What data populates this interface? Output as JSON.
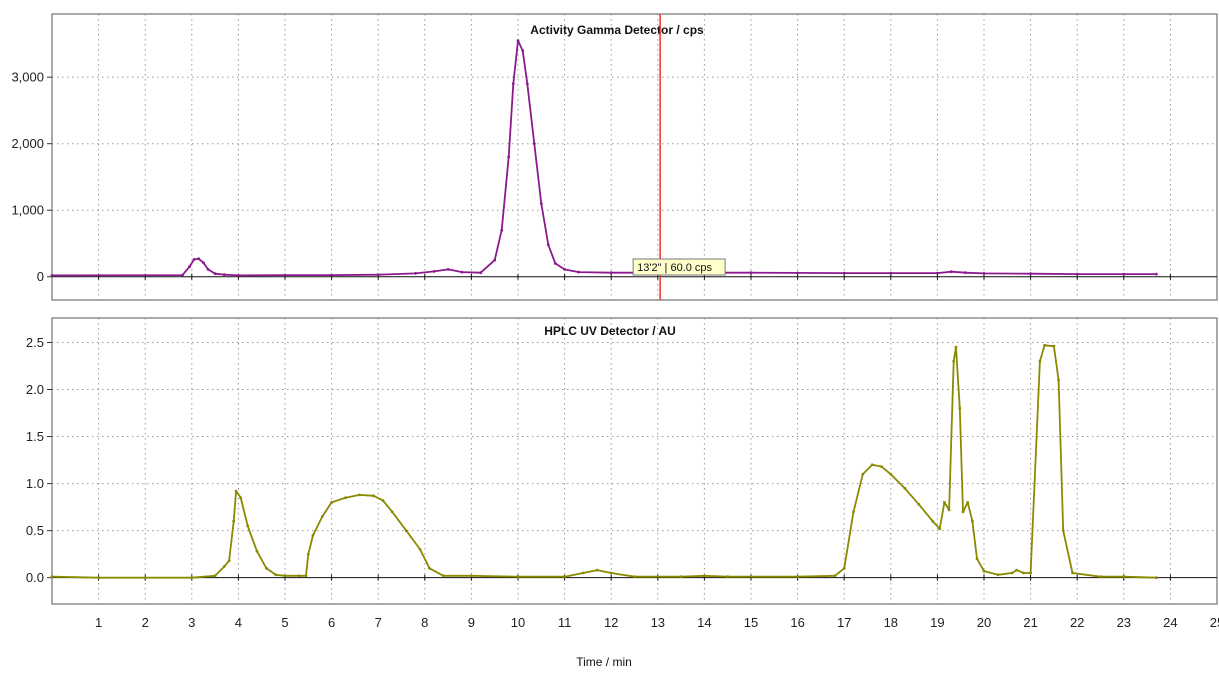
{
  "chart_data": [
    {
      "type": "line",
      "title": "Activity Gamma Detector / cps",
      "xlabel": "",
      "ylabel": "",
      "xlim": [
        0,
        25
      ],
      "ylim": [
        -350,
        3950
      ],
      "yticks": [
        0,
        1000,
        2000,
        3000
      ],
      "ytick_labels": [
        "0",
        "1,000",
        "2,000",
        "3,000"
      ],
      "grid": true,
      "series": [
        {
          "color": "#8B1A8E",
          "x": [
            0,
            2.8,
            2.95,
            3.05,
            3.15,
            3.25,
            3.35,
            3.5,
            3.7,
            4.0,
            5.0,
            6.0,
            7.0,
            7.8,
            8.2,
            8.5,
            8.8,
            9.2,
            9.5,
            9.65,
            9.8,
            9.9,
            10.0,
            10.1,
            10.2,
            10.35,
            10.5,
            10.65,
            10.8,
            11.0,
            11.3,
            12.0,
            13.0,
            14.0,
            15.0,
            16.0,
            17.0,
            18.0,
            19.0,
            19.3,
            19.6,
            20.0,
            21.0,
            22.0,
            23.0,
            23.7
          ],
          "y": [
            20,
            25,
            150,
            260,
            270,
            210,
            110,
            45,
            30,
            20,
            25,
            25,
            30,
            50,
            80,
            110,
            70,
            60,
            250,
            700,
            1800,
            2900,
            3550,
            3400,
            2900,
            2000,
            1100,
            480,
            200,
            110,
            70,
            60,
            60,
            60,
            60,
            58,
            55,
            55,
            55,
            75,
            60,
            50,
            45,
            40,
            40,
            40
          ]
        }
      ],
      "annotations": [
        {
          "type": "cursor",
          "x": 13.05,
          "label": "13'2\" | 60.0 cps"
        }
      ]
    },
    {
      "type": "line",
      "title": "HPLC UV Detector / AU",
      "xlabel": "Time / min",
      "ylabel": "",
      "xlim": [
        0,
        25
      ],
      "ylim": [
        -0.28,
        2.76
      ],
      "yticks": [
        0.0,
        0.5,
        1.0,
        1.5,
        2.0,
        2.5
      ],
      "ytick_labels": [
        "0.0",
        "0.5",
        "1.0",
        "1.5",
        "2.0",
        "2.5"
      ],
      "xticks": [
        1,
        2,
        3,
        4,
        5,
        6,
        7,
        8,
        9,
        10,
        11,
        12,
        13,
        14,
        15,
        16,
        17,
        18,
        19,
        20,
        21,
        22,
        23,
        24,
        25
      ],
      "xtick_labels": [
        "1",
        "2",
        "3",
        "4",
        "5",
        "6",
        "7",
        "8",
        "9",
        "10",
        "11",
        "12",
        "13",
        "14",
        "15",
        "16",
        "17",
        "18",
        "19",
        "20",
        "21",
        "22",
        "23",
        "24",
        "25"
      ],
      "grid": true,
      "series": [
        {
          "color": "#8A8A00",
          "x": [
            0,
            1.0,
            3.0,
            3.5,
            3.7,
            3.8,
            3.9,
            3.95,
            4.05,
            4.2,
            4.4,
            4.6,
            4.8,
            5.0,
            5.3,
            5.45,
            5.5,
            5.6,
            5.8,
            6.0,
            6.3,
            6.6,
            6.9,
            7.1,
            7.3,
            7.6,
            7.9,
            8.1,
            8.4,
            9.0,
            10.0,
            11.0,
            11.4,
            11.7,
            12.0,
            12.5,
            13.5,
            14.0,
            14.5,
            16.0,
            16.8,
            17.0,
            17.2,
            17.4,
            17.6,
            17.8,
            18.0,
            18.3,
            18.6,
            18.9,
            19.05,
            19.15,
            19.25,
            19.35,
            19.4,
            19.48,
            19.55,
            19.65,
            19.75,
            19.85,
            20.0,
            20.3,
            20.6,
            20.7,
            20.85,
            21.0,
            21.2,
            21.3,
            21.5,
            21.6,
            21.7,
            21.9,
            22.5,
            23.0,
            23.7
          ],
          "y": [
            0.01,
            0.0,
            0.0,
            0.02,
            0.12,
            0.18,
            0.6,
            0.92,
            0.85,
            0.55,
            0.28,
            0.1,
            0.03,
            0.02,
            0.02,
            0.02,
            0.25,
            0.45,
            0.65,
            0.8,
            0.85,
            0.88,
            0.87,
            0.82,
            0.7,
            0.5,
            0.3,
            0.1,
            0.02,
            0.02,
            0.01,
            0.01,
            0.05,
            0.08,
            0.05,
            0.01,
            0.01,
            0.02,
            0.01,
            0.01,
            0.02,
            0.1,
            0.7,
            1.1,
            1.2,
            1.18,
            1.1,
            0.95,
            0.78,
            0.6,
            0.52,
            0.8,
            0.72,
            2.3,
            2.45,
            1.8,
            0.7,
            0.8,
            0.6,
            0.2,
            0.07,
            0.03,
            0.05,
            0.08,
            0.05,
            0.05,
            2.3,
            2.47,
            2.46,
            2.1,
            0.5,
            0.05,
            0.01,
            0.01,
            0.0
          ]
        }
      ]
    }
  ]
}
